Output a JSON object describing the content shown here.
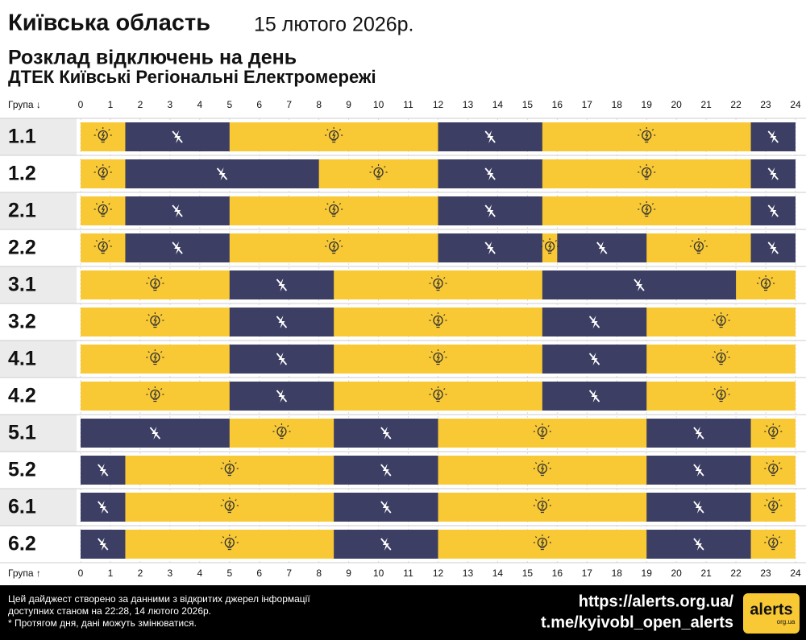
{
  "header": {
    "region": "Київська область",
    "date": "15 лютого 2026р.",
    "title": "Розклад відключень на день",
    "subtitle": "ДТЕК Київські Регіональні Електромережі"
  },
  "chart_data": {
    "type": "timeline",
    "axis_label_top": "Група ↓",
    "axis_label_bottom": "Група ↑",
    "xlim": [
      0,
      24
    ],
    "xticks": [
      0,
      1,
      2,
      3,
      4,
      5,
      6,
      7,
      8,
      9,
      10,
      11,
      12,
      13,
      14,
      15,
      16,
      17,
      18,
      19,
      20,
      21,
      22,
      23,
      24
    ],
    "on_color": "#f8c935",
    "off_color": "#3c3e63",
    "groups": [
      {
        "name": "1.1",
        "outages": [
          [
            1.5,
            5
          ],
          [
            12,
            15.5
          ],
          [
            22.5,
            24
          ]
        ]
      },
      {
        "name": "1.2",
        "outages": [
          [
            1.5,
            8
          ],
          [
            12,
            15.5
          ],
          [
            22.5,
            24
          ]
        ]
      },
      {
        "name": "2.1",
        "outages": [
          [
            1.5,
            5
          ],
          [
            12,
            15.5
          ],
          [
            22.5,
            24
          ]
        ]
      },
      {
        "name": "2.2",
        "outages": [
          [
            1.5,
            5
          ],
          [
            12,
            15.5
          ],
          [
            16,
            19
          ],
          [
            22.5,
            24
          ]
        ]
      },
      {
        "name": "3.1",
        "outages": [
          [
            5,
            8.5
          ],
          [
            15.5,
            22
          ]
        ]
      },
      {
        "name": "3.2",
        "outages": [
          [
            5,
            8.5
          ],
          [
            15.5,
            19
          ]
        ]
      },
      {
        "name": "4.1",
        "outages": [
          [
            5,
            8.5
          ],
          [
            15.5,
            19
          ]
        ]
      },
      {
        "name": "4.2",
        "outages": [
          [
            5,
            8.5
          ],
          [
            15.5,
            19
          ]
        ]
      },
      {
        "name": "5.1",
        "outages": [
          [
            0,
            5
          ],
          [
            8.5,
            12
          ],
          [
            19,
            22.5
          ]
        ]
      },
      {
        "name": "5.2",
        "outages": [
          [
            0,
            1.5
          ],
          [
            8.5,
            12
          ],
          [
            19,
            22.5
          ]
        ]
      },
      {
        "name": "6.1",
        "outages": [
          [
            0,
            1.5
          ],
          [
            8.5,
            12
          ],
          [
            19,
            22.5
          ]
        ]
      },
      {
        "name": "6.2",
        "outages": [
          [
            0,
            1.5
          ],
          [
            8.5,
            12
          ],
          [
            19,
            22.5
          ]
        ]
      }
    ]
  },
  "footer": {
    "note": [
      "Цей дайджест створено за данними з відкритих джерел інформації",
      "доступних станом на 22:28, 14 лютого 2026р.",
      "* Протягом дня, дані можуть змінюватися."
    ],
    "links": [
      "https://alerts.org.ua/",
      "t.me/kyivobl_open_alerts"
    ],
    "logo": "alerts",
    "logo_sub": "org.ua"
  }
}
